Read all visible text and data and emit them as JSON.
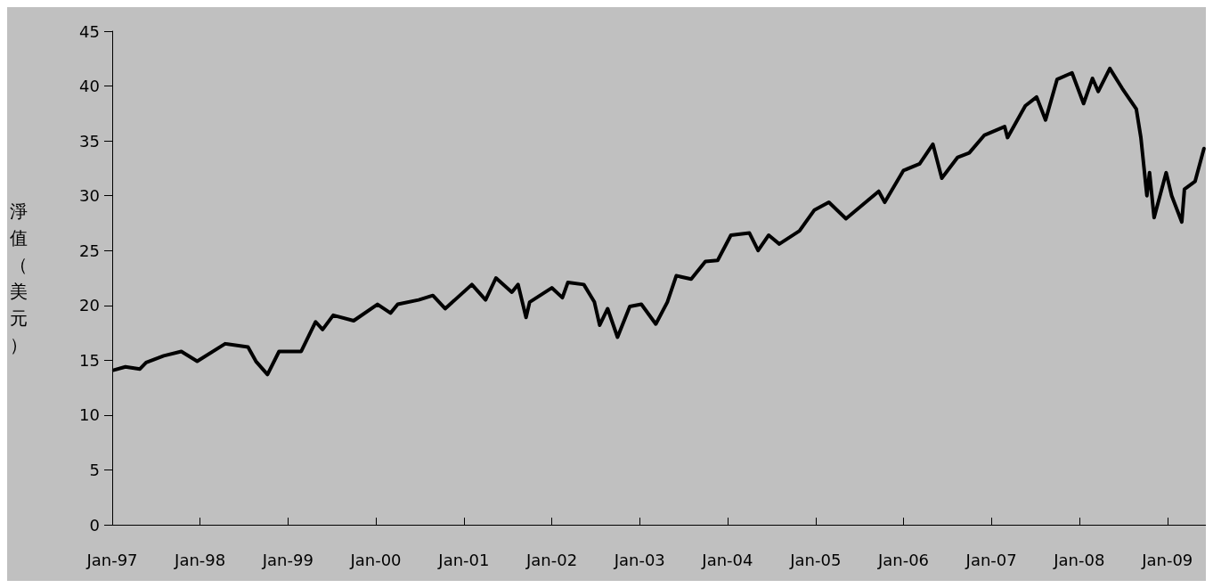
{
  "chart_data": {
    "type": "line",
    "ylabel": "淨值（美元）",
    "x": [
      "1997-01-08",
      "1997-02-25",
      "1997-04-26",
      "1997-05-22",
      "1997-08-03",
      "1997-10-15",
      "1997-12-20",
      "1998-04-15",
      "1998-07-19",
      "1998-08-21",
      "1998-10-08",
      "1998-11-25",
      "1999-02-25",
      "1999-04-26",
      "1999-05-25",
      "1999-07-08",
      "1999-10-01",
      "2000-01-08",
      "2000-03-02",
      "2000-04-01",
      "2000-06-27",
      "2000-08-25",
      "2000-10-15",
      "2001-02-03",
      "2001-04-01",
      "2001-05-14",
      "2001-07-19",
      "2001-08-14",
      "2001-09-16",
      "2001-10-01",
      "2002-01-01",
      "2002-02-14",
      "2002-03-09",
      "2002-05-14",
      "2002-06-27",
      "2002-07-19",
      "2002-08-21",
      "2002-10-01",
      "2002-11-21",
      "2003-01-08",
      "2003-03-09",
      "2003-04-26",
      "2003-06-02",
      "2003-08-03",
      "2003-10-01",
      "2003-11-21",
      "2004-01-15",
      "2004-04-01",
      "2004-05-07",
      "2004-06-20",
      "2004-08-03",
      "2004-10-26",
      "2004-12-27",
      "2005-02-25",
      "2005-05-07",
      "2005-09-20",
      "2005-10-15",
      "2006-01-01",
      "2006-03-09",
      "2006-05-03",
      "2006-06-09",
      "2006-08-14",
      "2006-10-01",
      "2006-12-02",
      "2007-02-25",
      "2007-03-09",
      "2007-05-22",
      "2007-07-08",
      "2007-08-14",
      "2007-10-01",
      "2007-12-02",
      "2008-01-19",
      "2008-02-25",
      "2008-03-20",
      "2008-05-07",
      "2008-06-27",
      "2008-08-25",
      "2008-09-13",
      "2008-10-08",
      "2008-10-19",
      "2008-11-07",
      "2008-12-27",
      "2009-01-19",
      "2009-03-02",
      "2009-03-13",
      "2009-04-26",
      "2009-06-02"
    ],
    "series": [
      {
        "color": "#000000",
        "values": [
          14.1,
          14.4,
          14.2,
          14.8,
          15.4,
          15.8,
          14.9,
          16.5,
          16.2,
          14.9,
          13.7,
          15.8,
          15.8,
          18.5,
          17.8,
          19.1,
          18.6,
          20.1,
          19.3,
          20.1,
          20.5,
          20.9,
          19.7,
          21.9,
          20.5,
          22.5,
          21.2,
          21.9,
          18.9,
          20.3,
          21.6,
          20.7,
          22.1,
          21.9,
          20.3,
          18.2,
          19.7,
          17.1,
          19.9,
          20.1,
          18.3,
          20.3,
          22.7,
          22.4,
          24.0,
          24.1,
          26.4,
          26.6,
          25.0,
          26.4,
          25.6,
          26.8,
          28.7,
          29.4,
          27.9,
          30.4,
          29.4,
          32.3,
          32.9,
          34.7,
          31.6,
          33.5,
          33.9,
          35.5,
          36.3,
          35.3,
          38.2,
          39.0,
          36.9,
          40.6,
          41.2,
          38.4,
          40.7,
          39.5,
          41.6,
          39.8,
          37.9,
          35.3,
          30.0,
          32.1,
          28.0,
          32.1,
          30.0,
          27.6,
          30.6,
          31.3,
          34.3
        ]
      }
    ],
    "xlim": [
      "1997-01-01",
      "2009-06-10"
    ],
    "xticks": [
      {
        "value": "1997-01-01",
        "label": "Jan-97"
      },
      {
        "value": "1998-01-01",
        "label": "Jan-98"
      },
      {
        "value": "1999-01-01",
        "label": "Jan-99"
      },
      {
        "value": "2000-01-01",
        "label": "Jan-00"
      },
      {
        "value": "2001-01-01",
        "label": "Jan-01"
      },
      {
        "value": "2002-01-01",
        "label": "Jan-02"
      },
      {
        "value": "2003-01-01",
        "label": "Jan-03"
      },
      {
        "value": "2004-01-01",
        "label": "Jan-04"
      },
      {
        "value": "2005-01-01",
        "label": "Jan-05"
      },
      {
        "value": "2006-01-01",
        "label": "Jan-06"
      },
      {
        "value": "2007-01-01",
        "label": "Jan-07"
      },
      {
        "value": "2008-01-01",
        "label": "Jan-08"
      },
      {
        "value": "2009-01-01",
        "label": "Jan-09"
      }
    ],
    "ylim": [
      0,
      45
    ],
    "yticks": [
      0,
      5,
      10,
      15,
      20,
      25,
      30,
      35,
      40,
      45
    ],
    "grid": false,
    "marker": "none",
    "line_style": "solid"
  }
}
